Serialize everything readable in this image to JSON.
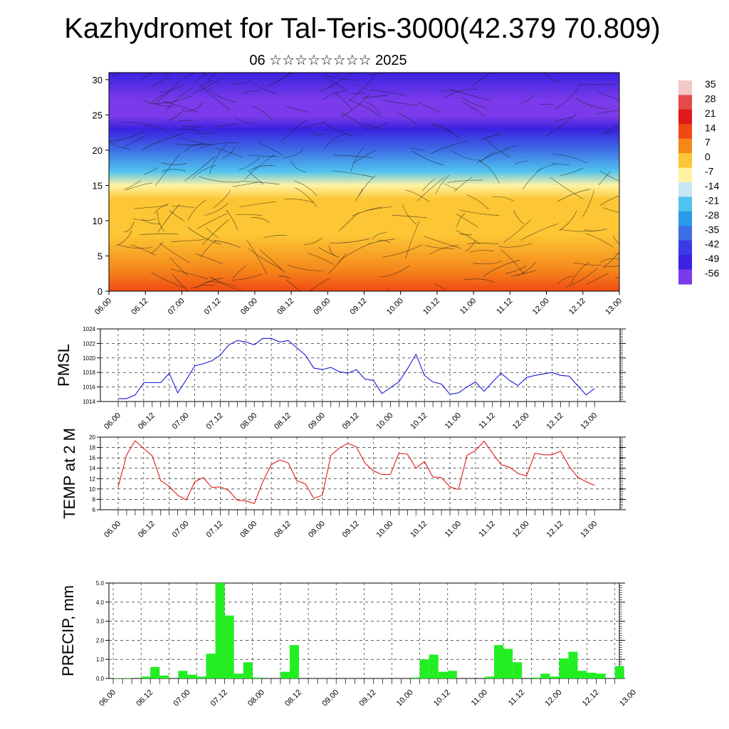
{
  "header": {
    "title": "Kazhydromet for Tal-Teris-3000(42.379 70.809)",
    "subtitle": "06 ☆☆☆☆☆☆☆☆ 2025"
  },
  "chart_data": [
    {
      "type": "heatmap",
      "name": "vertical temperature cross-section with wind streamlines",
      "x_labels": [
        "06.00",
        "06.12",
        "07.00",
        "07.12",
        "08.00",
        "08.12",
        "09.00",
        "09.12",
        "10.00",
        "10.12",
        "11.00",
        "11.12",
        "12.00",
        "12.12",
        "13.00"
      ],
      "y_ticks": [
        0,
        5,
        10,
        15,
        20,
        25,
        30
      ],
      "ylim": [
        0,
        31
      ],
      "colorbar": {
        "labels": [
          "35",
          "28",
          "21",
          "14",
          "7",
          "0",
          "-7",
          "-14",
          "-21",
          "-28",
          "-35",
          "-42",
          "-49",
          "-56"
        ],
        "colors": [
          "#f2c8c8",
          "#e44a4a",
          "#e0191a",
          "#f04a14",
          "#f5871b",
          "#fcc634",
          "#fff3a2",
          "#c8e6f2",
          "#50c3ef",
          "#2a9be6",
          "#3d6ee5",
          "#3a3ae6",
          "#3b22e0",
          "#7b3bea"
        ]
      },
      "profile": [
        {
          "level": 0,
          "value": 14
        },
        {
          "level": 3,
          "value": 8
        },
        {
          "level": 8,
          "value": 2
        },
        {
          "level": 13,
          "value": -3
        },
        {
          "level": 15,
          "value": -8
        },
        {
          "level": 17,
          "value": -18
        },
        {
          "level": 20,
          "value": -30
        },
        {
          "level": 23,
          "value": -44
        },
        {
          "level": 24.8,
          "value": -56
        },
        {
          "level": 27,
          "value": -50
        },
        {
          "level": 31,
          "value": -46
        }
      ]
    },
    {
      "type": "line",
      "ylabel": "PMSL",
      "ylim": [
        1014,
        1024
      ],
      "y_ticks": [
        1014,
        1016,
        1018,
        1020,
        1022,
        1024
      ],
      "x_labels": [
        "06.00",
        "06.12",
        "07.00",
        "07.12",
        "08.00",
        "08.12",
        "09.00",
        "09.12",
        "10.00",
        "10.12",
        "11.00",
        "11.12",
        "12.00",
        "12.12",
        "13.00"
      ],
      "color": "#1a1ad6",
      "values": [
        1014.4,
        1014.4,
        1014.9,
        1016.6,
        1016.6,
        1016.6,
        1017.9,
        1015.2,
        1017.0,
        1018.9,
        1019.2,
        1019.6,
        1020.4,
        1021.8,
        1022.4,
        1022.2,
        1021.8,
        1022.7,
        1022.7,
        1022.2,
        1022.4,
        1021.4,
        1020.4,
        1018.6,
        1018.4,
        1018.7,
        1018.1,
        1017.9,
        1018.4,
        1017.1,
        1016.9,
        1015.1,
        1015.9,
        1016.7,
        1018.5,
        1020.5,
        1017.6,
        1016.7,
        1016.4,
        1015.0,
        1015.2,
        1016.0,
        1016.7,
        1015.4,
        1016.7,
        1017.9,
        1016.9,
        1016.2,
        1017.3,
        1017.6,
        1017.8,
        1018.0,
        1017.6,
        1017.5,
        1016.2,
        1014.9,
        1015.8
      ]
    },
    {
      "type": "line",
      "ylabel": "TEMP at 2 M",
      "ylim": [
        6,
        20
      ],
      "y_ticks": [
        6,
        8,
        10,
        12,
        14,
        16,
        18,
        20
      ],
      "x_labels": [
        "06.00",
        "06.12",
        "07.00",
        "07.12",
        "08.00",
        "08.12",
        "09.00",
        "09.12",
        "10.00",
        "10.12",
        "11.00",
        "11.12",
        "12.00",
        "12.12",
        "13.00"
      ],
      "color": "#e01a1a",
      "values": [
        10.4,
        16.6,
        19.3,
        17.8,
        16.4,
        11.6,
        10.5,
        8.8,
        7.9,
        11.4,
        12.2,
        10.3,
        10.4,
        9.7,
        7.8,
        7.7,
        7.2,
        11.4,
        14.7,
        15.6,
        15.0,
        11.6,
        11.0,
        8.2,
        8.8,
        16.5,
        17.9,
        18.8,
        18.1,
        15.0,
        13.5,
        12.8,
        12.8,
        16.9,
        16.7,
        14.0,
        15.3,
        12.3,
        12.2,
        10.4,
        9.9,
        16.5,
        17.4,
        19.2,
        16.9,
        14.7,
        14.2,
        13.0,
        12.5,
        16.9,
        16.6,
        16.6,
        17.3,
        14.4,
        12.3,
        11.4,
        10.7
      ]
    },
    {
      "type": "bar",
      "ylabel": "PRECIP, mm",
      "ylim": [
        0,
        5
      ],
      "y_ticks": [
        "0.0",
        "1.0",
        "2.0",
        "3.0",
        "4.0",
        "5.0"
      ],
      "x_labels": [
        "06.00",
        "06.12",
        "07.00",
        "07.12",
        "08.00",
        "08.12",
        "09.00",
        "09.12",
        "10.00",
        "10.12",
        "11.00",
        "11.12",
        "12.00",
        "12.12",
        "13.00"
      ],
      "color": "#22ee22",
      "values": [
        0.02,
        0.02,
        0.0,
        0.1,
        0.6,
        0.15,
        0.0,
        0.4,
        0.2,
        0.1,
        1.3,
        5.0,
        3.3,
        0.25,
        0.85,
        0.05,
        0.0,
        0.0,
        0.35,
        1.75,
        0.0,
        0.0,
        0.0,
        0.0,
        0.0,
        0.0,
        0.0,
        0.0,
        0.0,
        0.0,
        0.0,
        0.0,
        0.05,
        1.0,
        1.25,
        0.35,
        0.4,
        0.0,
        0.0,
        0.0,
        0.1,
        1.75,
        1.55,
        0.85,
        0.0,
        0.05,
        0.25,
        0.1,
        1.05,
        1.4,
        0.4,
        0.3,
        0.25,
        0.0,
        0.65
      ]
    }
  ]
}
